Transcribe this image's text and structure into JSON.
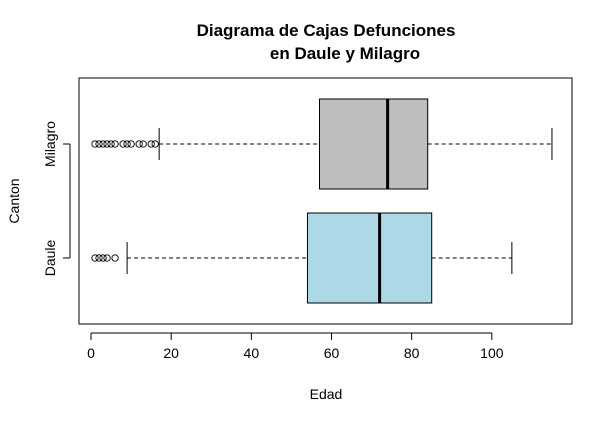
{
  "chart_data": {
    "type": "boxplot",
    "title": "Diagrama de Cajas Defunciones",
    "title_line2": "en Daule y Milagro",
    "xlabel": "Edad",
    "ylabel": "Canton",
    "xlim": [
      -3,
      120
    ],
    "x_ticks": [
      0,
      20,
      40,
      60,
      80,
      100
    ],
    "x_tick_labels": [
      "0",
      "20",
      "40",
      "60",
      "80",
      "100"
    ],
    "orientation": "horizontal",
    "grid": false,
    "series": [
      {
        "name": "Daule",
        "color": "#ADD8E6",
        "whisker_low": 9,
        "q1": 54,
        "median": 72,
        "q3": 85,
        "whisker_high": 105,
        "outliers": [
          1,
          2,
          3,
          4,
          6
        ]
      },
      {
        "name": "Milagro",
        "color": "#BEBEBE",
        "whisker_low": 17,
        "q1": 57,
        "median": 74,
        "q3": 84,
        "whisker_high": 115,
        "outliers": [
          1,
          2,
          3,
          4,
          5,
          6,
          8,
          9,
          10,
          12,
          13,
          15,
          16
        ]
      }
    ]
  }
}
